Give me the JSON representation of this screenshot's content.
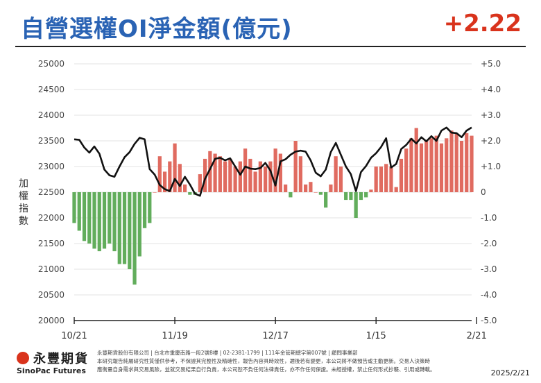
{
  "header": {
    "title": "自營選權OI淨金額(億元)",
    "value": "+2.22",
    "value_color": "#d9331c",
    "title_color": "#2a63b4"
  },
  "chart_data": {
    "type": "bar",
    "left_axis": {
      "label": "加權指數",
      "range": [
        20000,
        25000
      ],
      "step": 500
    },
    "right_axis": {
      "range": [
        -5.0,
        5.0
      ],
      "ticks": [
        "+5.0",
        "+4.0",
        "+3.0",
        "+2.0",
        "+1.0",
        "0",
        "-1.0",
        "-2.0",
        "-3.0",
        "-4.0",
        "-5.0"
      ]
    },
    "x_ticks": [
      {
        "label": "10/21",
        "index": 0
      },
      {
        "label": "11/19",
        "index": 20
      },
      {
        "label": "12/17",
        "index": 40
      },
      {
        "label": "1/15",
        "index": 60
      },
      {
        "label": "2/21",
        "index": 80
      }
    ],
    "colors": {
      "positive": "#e06b60",
      "negative": "#62ad5c",
      "line": "#111111"
    },
    "series": [
      {
        "kind": "bar",
        "axis": "right",
        "values": [
          -1.2,
          -1.5,
          -1.9,
          -2.0,
          -2.2,
          -2.3,
          -2.2,
          -2.0,
          -2.3,
          -2.8,
          -2.8,
          -3.0,
          -3.6,
          -2.5,
          -1.4,
          -1.2,
          0.0,
          1.4,
          0.8,
          1.2,
          1.9,
          1.1,
          0.3,
          -0.1,
          -0.1,
          0.7,
          1.3,
          1.6,
          1.5,
          1.4,
          1.2,
          1.3,
          1.0,
          1.2,
          1.7,
          1.3,
          0.8,
          1.2,
          1.0,
          1.2,
          1.7,
          1.5,
          0.3,
          -0.2,
          2.0,
          1.4,
          0.3,
          0.4,
          0.0,
          -0.1,
          -0.6,
          0.3,
          1.4,
          1.0,
          -0.3,
          -0.3,
          -1.0,
          -0.3,
          -0.2,
          0.1,
          1.0,
          1.0,
          1.1,
          1.0,
          0.2,
          1.3,
          1.7,
          2.1,
          2.5,
          1.9,
          2.0,
          2.1,
          2.2,
          1.9,
          2.1,
          2.4,
          2.3,
          2.0,
          2.3,
          2.2
        ]
      },
      {
        "kind": "line",
        "axis": "left",
        "values": [
          23530,
          23520,
          23370,
          23270,
          23390,
          23250,
          22940,
          22830,
          22800,
          23000,
          23180,
          23280,
          23440,
          23560,
          23530,
          22950,
          22840,
          22640,
          22560,
          22520,
          22760,
          22620,
          22800,
          22650,
          22470,
          22430,
          22760,
          22950,
          23150,
          23170,
          23120,
          23160,
          23000,
          22840,
          23000,
          22960,
          22950,
          22970,
          23070,
          22920,
          22630,
          23100,
          23140,
          23230,
          23290,
          23310,
          23290,
          23120,
          22880,
          22810,
          22940,
          23280,
          23460,
          23230,
          23000,
          22850,
          22520,
          22890,
          23010,
          23170,
          23260,
          23380,
          23550,
          22980,
          23050,
          23340,
          23420,
          23540,
          23450,
          23570,
          23490,
          23590,
          23500,
          23700,
          23760,
          23660,
          23650,
          23570,
          23700,
          23760
        ]
      }
    ]
  },
  "footer": {
    "brand_cn": "永豐期貨",
    "brand_en": "SinoPac Futures",
    "line1": "永豐期貨股份有限公司 | 台北市重慶南路一段2號8樓 | 02-2381-1799 | 111年金管期總字第007號 | 顧問事業部",
    "line2": "本研究報告純屬研究性質僅供參考，不保證其完整性及精確性，報告內容具時效性，邇後若有變更，本公司將不做預告或主動更新。交易人決策時",
    "line3": "應衡量自身需求與交易風險，並就交易結果自行負責，本公司恕不負任何法律責任，亦不作任何保證。未經授權，禁止任何形式抄襲、引用或轉載。",
    "date": "2025/2/21"
  }
}
